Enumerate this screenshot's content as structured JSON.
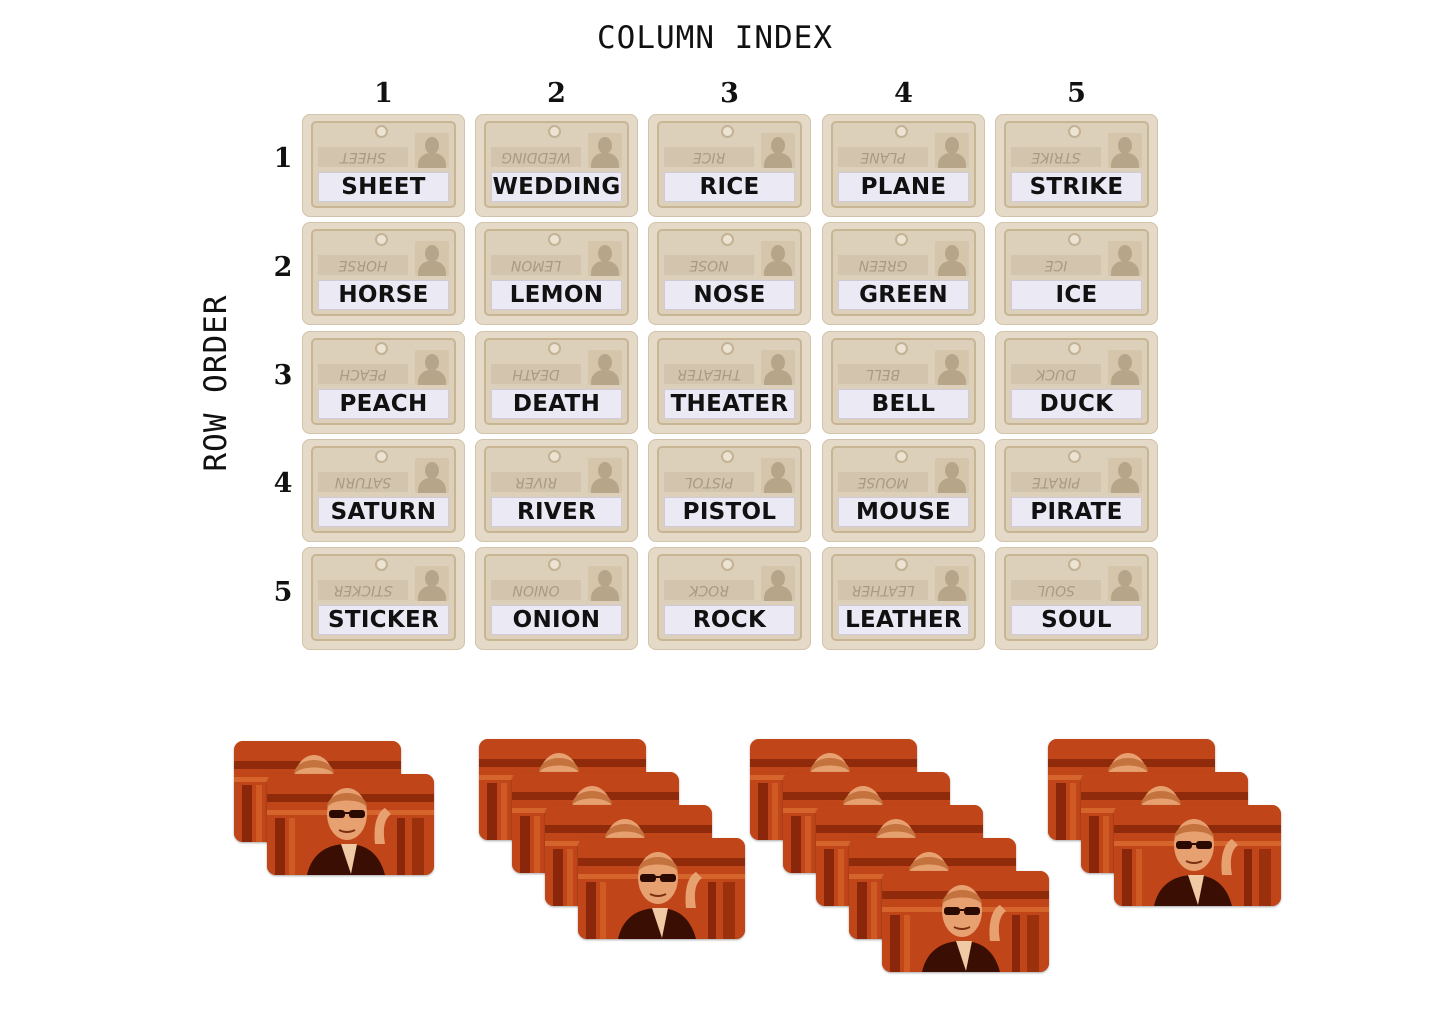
{
  "axis": {
    "column_title": "COLUMN INDEX",
    "row_title": "ROW ORDER",
    "column_numbers": [
      "1",
      "2",
      "3",
      "4",
      "5"
    ],
    "row_numbers": [
      "1",
      "2",
      "3",
      "4",
      "5"
    ]
  },
  "board": {
    "rows": [
      [
        "SHEET",
        "WEDDING",
        "RICE",
        "PLANE",
        "STRIKE"
      ],
      [
        "HORSE",
        "LEMON",
        "NOSE",
        "GREEN",
        "ICE"
      ],
      [
        "PEACH",
        "DEATH",
        "THEATER",
        "BELL",
        "DUCK"
      ],
      [
        "SATURN",
        "RIVER",
        "PISTOL",
        "MOUSE",
        "PIRATE"
      ],
      [
        "STICKER",
        "ONION",
        "ROCK",
        "LEATHER",
        "SOUL"
      ]
    ]
  },
  "agent_stacks": {
    "counts": [
      2,
      4,
      5,
      3
    ],
    "card_icon": "agent-portrait-icon"
  },
  "colors": {
    "card_background": "#e5dac8",
    "agent_card": "#c0461a"
  }
}
